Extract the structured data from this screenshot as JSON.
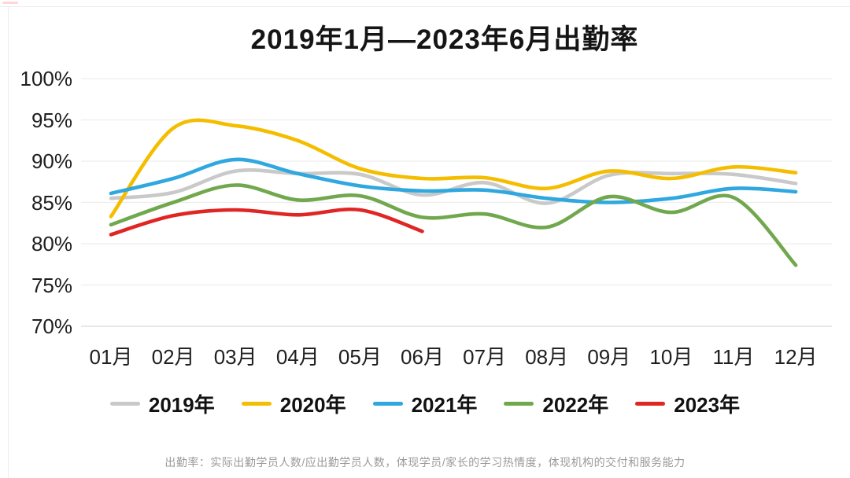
{
  "page": {
    "caption": "出勤率：实际出勤学员人数/应出勤学员人数，体现学员/家长的学习热情度，体现机构的交付和服务能力"
  },
  "chart_data": {
    "type": "line",
    "title": "2019年1月—2023年6月出勤率",
    "categories": [
      "01月",
      "02月",
      "03月",
      "04月",
      "05月",
      "06月",
      "07月",
      "08月",
      "09月",
      "10月",
      "11月",
      "12月"
    ],
    "y_tick_labels": [
      "100%",
      "95%",
      "90%",
      "85%",
      "80%",
      "75%",
      "70%"
    ],
    "y_tick_values": [
      100,
      95,
      90,
      85,
      80,
      75,
      70
    ],
    "ylim": [
      70,
      100
    ],
    "grid": true,
    "grid_color": "#ededed",
    "baseline_color": "#d9d9d9",
    "legend_position": "bottom",
    "series": [
      {
        "name": "2019年",
        "color": "#c9c9c9",
        "values": [
          85.5,
          86.2,
          88.8,
          88.5,
          88.4,
          85.9,
          87.4,
          84.9,
          88.3,
          88.5,
          88.4,
          87.3
        ]
      },
      {
        "name": "2020年",
        "color": "#f5bd00",
        "values": [
          83.3,
          94.0,
          94.3,
          92.5,
          89.1,
          87.9,
          88.0,
          86.7,
          88.8,
          87.9,
          89.3,
          88.6
        ]
      },
      {
        "name": "2021年",
        "color": "#2fa8df",
        "values": [
          86.1,
          87.9,
          90.2,
          88.5,
          87.0,
          86.4,
          86.5,
          85.5,
          85.0,
          85.5,
          86.7,
          86.3
        ]
      },
      {
        "name": "2022年",
        "color": "#71a84e",
        "values": [
          82.3,
          85.0,
          87.1,
          85.3,
          85.8,
          83.2,
          83.6,
          82.0,
          85.7,
          83.8,
          85.6,
          77.4
        ]
      },
      {
        "name": "2023年",
        "color": "#e02525",
        "values": [
          81.1,
          83.4,
          84.1,
          83.5,
          84.1,
          81.5
        ]
      }
    ]
  }
}
